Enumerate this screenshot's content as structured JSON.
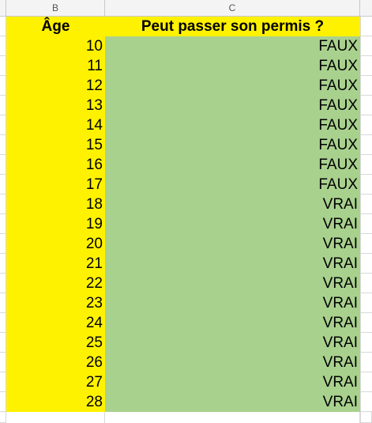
{
  "sheet": {
    "columns": {
      "b": "B",
      "c": "C"
    },
    "headers": {
      "age": "Âge",
      "can_drive": "Peut passer son permis ?"
    },
    "rows": [
      {
        "age": "10",
        "result": "FAUX"
      },
      {
        "age": "11",
        "result": "FAUX"
      },
      {
        "age": "12",
        "result": "FAUX"
      },
      {
        "age": "13",
        "result": "FAUX"
      },
      {
        "age": "14",
        "result": "FAUX"
      },
      {
        "age": "15",
        "result": "FAUX"
      },
      {
        "age": "16",
        "result": "FAUX"
      },
      {
        "age": "17",
        "result": "FAUX"
      },
      {
        "age": "18",
        "result": "VRAI"
      },
      {
        "age": "19",
        "result": "VRAI"
      },
      {
        "age": "20",
        "result": "VRAI"
      },
      {
        "age": "21",
        "result": "VRAI"
      },
      {
        "age": "22",
        "result": "VRAI"
      },
      {
        "age": "23",
        "result": "VRAI"
      },
      {
        "age": "24",
        "result": "VRAI"
      },
      {
        "age": "25",
        "result": "VRAI"
      },
      {
        "age": "26",
        "result": "VRAI"
      },
      {
        "age": "27",
        "result": "VRAI"
      },
      {
        "age": "28",
        "result": "VRAI"
      }
    ]
  },
  "colors": {
    "yellow_fill": "#FFF200",
    "green_fill": "#A9D18E"
  }
}
